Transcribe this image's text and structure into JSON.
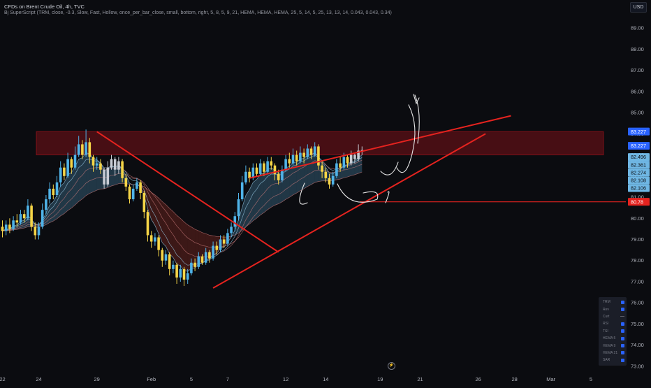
{
  "header": {
    "symbol_title": "CFDs on Brent Crude Oil, 4h, TVC",
    "indicator_line": "Bj SuperScript (TRM, close, -0.3, Slow, Fast, Hollow, once_per_bar_close, small, bottom, right, 5, 8, 5, 9, 21, HEMA, HEMA, HEMA, 25, 5, 14, 5, 25, 13, 13, 14, 0.043, 0.043, 0.34)",
    "currency": "USD"
  },
  "indicator_table": [
    {
      "label": "TRM",
      "state": "check"
    },
    {
      "label": "Rev",
      "state": "check"
    },
    {
      "label": "Curt",
      "state": "dash"
    },
    {
      "label": "RSI",
      "state": "check"
    },
    {
      "label": "TSI",
      "state": "check"
    },
    {
      "label": "HEMA 5",
      "state": "check"
    },
    {
      "label": "HEMA 9",
      "state": "check"
    },
    {
      "label": "HEMA 21",
      "state": "check"
    },
    {
      "label": "SAR",
      "state": "check"
    }
  ],
  "colors": {
    "background": "#0b0c10",
    "bull": "#4fb3e8",
    "bear": "#f5d547",
    "neutral": "#c8ccd4",
    "trendline": "#e5231f",
    "zone": "#7a1018",
    "price_badge": "#2962ff",
    "level_badge": "#e5231f",
    "ribbon_bull": "#5fa8d3",
    "ribbon_bear": "#c0392b"
  },
  "chart_data": {
    "type": "candlestick",
    "title": "CFDs on Brent Crude Oil, 4h, TVC",
    "interval": "4h",
    "y_axis_side": "right",
    "ylim": [
      72.6,
      89.6
    ],
    "y_ticks": [
      73.0,
      74.0,
      75.0,
      76.0,
      77.0,
      78.0,
      79.0,
      80.0,
      81.0,
      82.0,
      83.0,
      84.0,
      85.0,
      86.0,
      87.0,
      88.0,
      89.0
    ],
    "x_ticks": [
      {
        "label": "22",
        "index": 0
      },
      {
        "label": "24",
        "index": 10
      },
      {
        "label": "29",
        "index": 26
      },
      {
        "label": "Feb",
        "index": 41
      },
      {
        "label": "5",
        "index": 52
      },
      {
        "label": "7",
        "index": 62
      },
      {
        "label": "12",
        "index": 78
      },
      {
        "label": "14",
        "index": 89
      },
      {
        "label": "19",
        "index": 104
      },
      {
        "label": "21",
        "index": 115
      },
      {
        "label": "26",
        "index": 131
      },
      {
        "label": "28",
        "index": 141
      },
      {
        "label": "Mar",
        "index": 151
      },
      {
        "label": "5",
        "index": 162
      }
    ],
    "candles": [
      [
        79.6,
        79.4,
        79.9,
        79.1
      ],
      [
        79.4,
        79.7,
        79.9,
        79.2
      ],
      [
        79.7,
        79.5,
        80.0,
        79.3
      ],
      [
        79.5,
        79.9,
        80.1,
        79.4
      ],
      [
        79.9,
        79.8,
        80.2,
        79.6
      ],
      [
        79.8,
        80.2,
        80.4,
        79.7
      ],
      [
        80.2,
        80.0,
        80.4,
        79.8
      ],
      [
        80.0,
        80.6,
        80.9,
        79.9
      ],
      [
        80.6,
        79.6,
        80.7,
        79.4
      ],
      [
        79.6,
        79.2,
        79.8,
        79.0
      ],
      [
        79.2,
        79.6,
        79.8,
        79.0
      ],
      [
        79.6,
        80.4,
        80.7,
        79.5
      ],
      [
        80.4,
        80.9,
        81.1,
        80.2
      ],
      [
        80.9,
        81.4,
        81.7,
        80.7
      ],
      [
        81.4,
        81.1,
        81.6,
        80.9
      ],
      [
        81.1,
        81.7,
        82.0,
        81.0
      ],
      [
        81.7,
        82.4,
        82.7,
        81.5
      ],
      [
        82.4,
        82.0,
        82.6,
        81.8
      ],
      [
        82.0,
        82.8,
        83.1,
        81.9
      ],
      [
        82.8,
        82.4,
        82.9,
        82.1
      ],
      [
        82.4,
        83.0,
        83.4,
        82.3
      ],
      [
        83.0,
        83.5,
        83.9,
        82.9
      ],
      [
        83.5,
        83.0,
        83.7,
        82.8
      ],
      [
        83.0,
        83.6,
        84.2,
        82.9
      ],
      [
        83.6,
        82.9,
        83.8,
        82.6
      ],
      [
        82.9,
        82.5,
        83.0,
        82.2
      ],
      [
        82.5,
        82.6,
        82.9,
        82.3
      ],
      [
        82.6,
        82.3,
        82.8,
        82.1
      ],
      [
        82.3,
        81.6,
        82.4,
        81.4
      ],
      [
        81.6,
        82.4,
        82.7,
        81.5
      ],
      [
        82.4,
        82.8,
        83.0,
        82.3
      ],
      [
        82.8,
        82.3,
        82.9,
        82.0
      ],
      [
        82.3,
        82.7,
        82.9,
        82.1
      ],
      [
        82.7,
        81.9,
        82.8,
        81.7
      ],
      [
        81.9,
        81.5,
        82.1,
        81.3
      ],
      [
        81.5,
        80.9,
        81.6,
        80.7
      ],
      [
        80.9,
        81.4,
        81.6,
        80.8
      ],
      [
        81.4,
        81.7,
        81.9,
        81.3
      ],
      [
        81.7,
        81.2,
        81.8,
        80.9
      ],
      [
        81.2,
        80.3,
        81.3,
        80.0
      ],
      [
        80.3,
        79.2,
        80.4,
        78.9
      ],
      [
        79.2,
        78.9,
        79.4,
        78.6
      ],
      [
        78.9,
        79.1,
        79.3,
        78.7
      ],
      [
        79.1,
        78.5,
        79.2,
        78.2
      ],
      [
        78.5,
        78.0,
        78.6,
        77.7
      ],
      [
        78.0,
        78.3,
        78.5,
        77.8
      ],
      [
        78.3,
        77.6,
        78.4,
        77.3
      ],
      [
        77.6,
        77.8,
        78.0,
        77.4
      ],
      [
        77.8,
        77.2,
        77.9,
        76.9
      ],
      [
        77.2,
        77.6,
        77.8,
        77.0
      ],
      [
        77.6,
        77.1,
        77.7,
        76.8
      ],
      [
        77.1,
        77.4,
        77.6,
        76.9
      ],
      [
        77.4,
        77.9,
        78.1,
        77.3
      ],
      [
        77.9,
        77.7,
        78.1,
        77.5
      ],
      [
        77.7,
        78.2,
        78.4,
        77.6
      ],
      [
        78.2,
        77.9,
        78.3,
        77.8
      ],
      [
        77.9,
        78.4,
        78.6,
        77.8
      ],
      [
        78.4,
        78.1,
        78.5,
        77.9
      ],
      [
        78.1,
        78.7,
        78.9,
        78.0
      ],
      [
        78.7,
        78.5,
        78.9,
        78.3
      ],
      [
        78.5,
        79.0,
        79.2,
        78.4
      ],
      [
        79.0,
        78.8,
        79.2,
        78.6
      ],
      [
        78.8,
        79.3,
        79.5,
        78.7
      ],
      [
        79.3,
        79.6,
        79.8,
        79.1
      ],
      [
        79.6,
        80.1,
        80.3,
        79.4
      ],
      [
        80.1,
        80.9,
        81.2,
        79.9
      ],
      [
        80.9,
        81.7,
        82.0,
        80.8
      ],
      [
        81.7,
        82.2,
        82.5,
        81.6
      ],
      [
        82.2,
        81.9,
        82.4,
        81.7
      ],
      [
        81.9,
        82.4,
        82.6,
        81.8
      ],
      [
        82.4,
        82.1,
        82.6,
        82.0
      ],
      [
        82.1,
        82.6,
        82.8,
        82.0
      ],
      [
        82.6,
        82.2,
        82.7,
        82.0
      ],
      [
        82.2,
        82.7,
        82.9,
        82.1
      ],
      [
        82.7,
        82.5,
        82.9,
        82.3
      ],
      [
        82.5,
        82.1,
        82.6,
        81.8
      ],
      [
        82.1,
        81.8,
        82.3,
        81.6
      ],
      [
        81.8,
        82.3,
        82.5,
        81.7
      ],
      [
        82.3,
        82.8,
        83.0,
        82.2
      ],
      [
        82.8,
        82.6,
        83.1,
        82.4
      ],
      [
        82.6,
        83.0,
        83.3,
        82.5
      ],
      [
        83.0,
        82.7,
        83.2,
        82.5
      ],
      [
        82.7,
        83.1,
        83.4,
        82.6
      ],
      [
        83.1,
        82.9,
        83.3,
        82.6
      ],
      [
        82.9,
        83.3,
        83.5,
        82.8
      ],
      [
        83.3,
        83.0,
        83.4,
        82.8
      ],
      [
        83.0,
        83.4,
        83.6,
        82.9
      ],
      [
        83.4,
        82.5,
        83.5,
        82.3
      ],
      [
        82.5,
        82.2,
        82.7,
        81.9
      ],
      [
        82.2,
        81.9,
        82.4,
        81.7
      ],
      [
        81.9,
        81.6,
        82.1,
        81.4
      ],
      [
        81.6,
        82.0,
        82.2,
        81.5
      ],
      [
        82.0,
        82.6,
        82.8,
        81.9
      ],
      [
        82.6,
        82.4,
        82.9,
        82.2
      ],
      [
        82.4,
        82.9,
        83.1,
        82.3
      ],
      [
        82.9,
        82.6,
        83.0,
        82.4
      ],
      [
        82.6,
        83.0,
        83.2,
        82.5
      ],
      [
        83.0,
        82.8,
        83.1,
        82.6
      ],
      [
        82.8,
        83.2,
        83.5,
        82.7
      ],
      [
        83.2,
        83.227,
        83.4,
        83.0
      ]
    ],
    "levels": {
      "last_price": 83.227,
      "support": 80.78,
      "supply_zone": [
        83.0,
        84.1
      ]
    },
    "price_labels": [
      "83.227",
      "83.227",
      "83.22",
      "82.496",
      "82.361",
      "82.274",
      "82.108",
      "82.106",
      "80.78"
    ],
    "trendlines": [
      {
        "from": [
          26,
          84.1
        ],
        "to": [
          76,
          78.4
        ]
      },
      {
        "from": [
          58,
          76.7
        ],
        "to": [
          133,
          84.0
        ]
      },
      {
        "from": [
          68,
          81.9
        ],
        "to": [
          140,
          84.85
        ]
      }
    ]
  }
}
